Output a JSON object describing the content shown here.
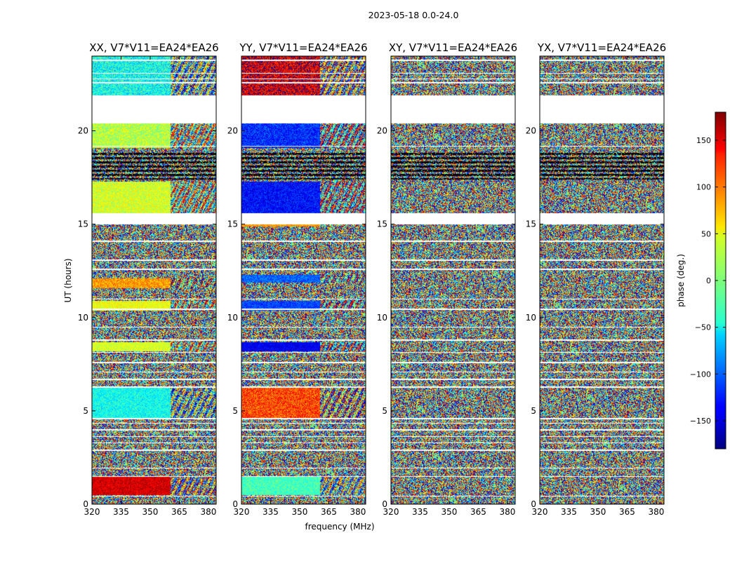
{
  "chart_data": {
    "type": "heatmap",
    "suptitle": "2023-05-18 0.0-24.0",
    "xlabel": "frequency (MHz)",
    "ylabel": "UT (hours)",
    "xlim": [
      320,
      384
    ],
    "ylim": [
      0,
      24
    ],
    "xticks": [
      320,
      335,
      350,
      365,
      380
    ],
    "yticks": [
      0,
      5,
      10,
      15,
      20
    ],
    "colormap": "jet",
    "colorbar": {
      "label": "phase (deg.)",
      "range": [
        -180,
        180
      ],
      "ticks": [
        150,
        100,
        50,
        0,
        -50,
        -100,
        -150
      ],
      "tick_labels": [
        "150",
        "100",
        "50",
        "0",
        "−50",
        "−100",
        "−150"
      ]
    },
    "panels": [
      {
        "title": "XX, V7*V11=EA24*EA26"
      },
      {
        "title": "YY, V7*V11=EA24*EA26"
      },
      {
        "title": "XY, V7*V11=EA24*EA26"
      },
      {
        "title": "YX, V7*V11=EA24*EA26"
      }
    ],
    "gaps_ut": [
      [
        20.4,
        21.9
      ],
      [
        15.0,
        15.6
      ]
    ],
    "dark_band_ut": [
      17.4,
      18.9
    ]
  }
}
